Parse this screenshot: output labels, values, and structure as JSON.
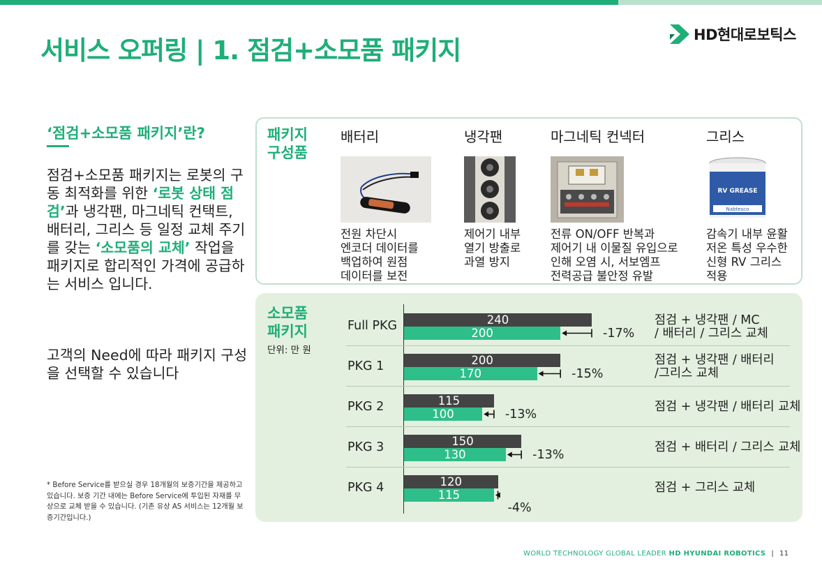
{
  "header": {
    "title": "서비스 오퍼링 | 1. 점검+소모품 패키지",
    "logo_text": "HD현대로보틱스",
    "accent_color": "#1fae78"
  },
  "left": {
    "heading": "‘점검+소모품 패키지’란?",
    "desc_1": "점검+소모품 패키지는 로봇의 구동 최적화를 위한 ",
    "desc_hl1": "‘로봇 상태 점검’",
    "desc_2": "과 냉각팬, 마그네틱 컨택트, 배터리, 그리스 등 일정 교체 주기를 갖는 ",
    "desc_hl2": "‘소모품의 교체’",
    "desc_3": " 작업을 패키지로 합리적인 가격에 공급하는 서비스 입니다.",
    "note": "고객의 Need에 따라 패키지 구성을 선택할 수 있습니다",
    "footnote": "* Before Service를 받으실 경우 18개월의 보증기간을 제공하고 있습니다. 보증 기간 내에는 Before Service에 투입된 자재를 무상으로 교체 받을 수 있습니다. (기존 유상 AS 서비스는 12개월 보증기간입니다.)"
  },
  "components": {
    "label_1": "패키지",
    "label_2": "구성품",
    "items": [
      {
        "name": "배터리",
        "desc": [
          "전원 차단시",
          "엔코더 데이터를",
          "백업하여 원점",
          "데이터를 보전"
        ]
      },
      {
        "name": "냉각팬",
        "desc": [
          "제어기 내부",
          "열기 방출로",
          "과열 방지"
        ]
      },
      {
        "name": "마그네틱 컨넥터",
        "desc": [
          "전류 ON/OFF 반복과",
          "제어기 내 이물질 유입으로",
          "인해 오염 시, 서보엠프",
          "전력공급 불안정 유발"
        ]
      },
      {
        "name": "그리스",
        "desc": [
          "감속기 내부 윤활",
          "저온 특성 우수한",
          "신형 RV 그리스",
          "적용"
        ],
        "can_text_1": "RV GREASE",
        "can_text_2": "Nabtesco"
      }
    ]
  },
  "packages": {
    "label_1": "소모품",
    "label_2": "패키지",
    "unit": "단위: 만 원",
    "colors": {
      "before": "#444444",
      "after": "#2ebe8a"
    }
  },
  "chart_data": {
    "type": "bar",
    "categories": [
      "Full PKG",
      "PKG 1",
      "PKG 2",
      "PKG 3",
      "PKG 4"
    ],
    "series": [
      {
        "values": [
          240,
          200,
          115,
          150,
          120
        ]
      },
      {
        "values": [
          200,
          170,
          100,
          130,
          115
        ]
      }
    ],
    "discounts": [
      "-17%",
      "-15%",
      "-13%",
      "-13%",
      "-4%"
    ],
    "descriptions": [
      [
        "점검 + 냉각팬 / MC",
        "/ 배터리  / 그리스 교체"
      ],
      [
        "점검 + 냉각팬 / 배터리",
        "/그리스 교체"
      ],
      [
        "점검 + 냉각팬 / 배터리 교체"
      ],
      [
        "점검 + 배터리 / 그리스 교체"
      ],
      [
        "점검 + 그리스 교체"
      ]
    ],
    "xlim": [
      0,
      240
    ],
    "orientation": "horizontal"
  },
  "footer": {
    "tagline": "WORLD TECHNOLOGY GLOBAL LEADER",
    "brand": "HD HYUNDAI ROBOTICS",
    "page": "11"
  }
}
